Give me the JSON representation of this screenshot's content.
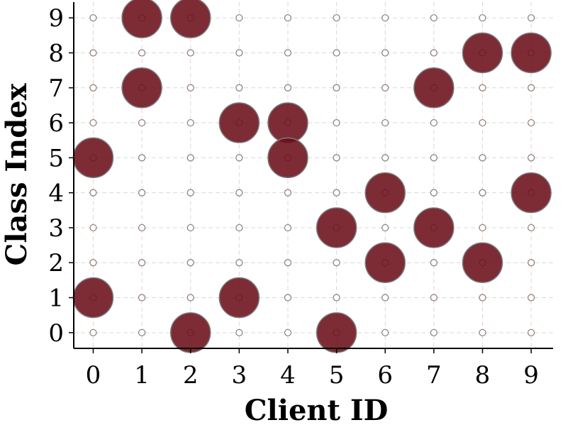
{
  "chart_data": {
    "type": "scatter",
    "title": "",
    "xlabel": "Client ID",
    "ylabel": "Class Index",
    "x_ticks": [
      "0",
      "1",
      "2",
      "3",
      "4",
      "5",
      "6",
      "7",
      "8",
      "9"
    ],
    "y_ticks": [
      "0",
      "1",
      "2",
      "3",
      "4",
      "5",
      "6",
      "7",
      "8",
      "9"
    ],
    "xlim": [
      -0.4,
      9.45
    ],
    "ylim": [
      -0.45,
      9.45
    ],
    "grid": true,
    "colors": {
      "point": "#6b0f1a",
      "point_edge": "#7a7a7a",
      "background_marker": "#8c7a70"
    },
    "background_grid_points": true,
    "points": [
      {
        "x": 0,
        "y": 5
      },
      {
        "x": 0,
        "y": 1
      },
      {
        "x": 1,
        "y": 9
      },
      {
        "x": 1,
        "y": 7
      },
      {
        "x": 2,
        "y": 9
      },
      {
        "x": 2,
        "y": 0
      },
      {
        "x": 3,
        "y": 6
      },
      {
        "x": 3,
        "y": 1
      },
      {
        "x": 4,
        "y": 6
      },
      {
        "x": 4,
        "y": 5
      },
      {
        "x": 5,
        "y": 3
      },
      {
        "x": 5,
        "y": 0
      },
      {
        "x": 6,
        "y": 4
      },
      {
        "x": 6,
        "y": 2
      },
      {
        "x": 7,
        "y": 7
      },
      {
        "x": 7,
        "y": 3
      },
      {
        "x": 8,
        "y": 8
      },
      {
        "x": 8,
        "y": 2
      },
      {
        "x": 9,
        "y": 8
      },
      {
        "x": 9,
        "y": 4
      }
    ]
  }
}
